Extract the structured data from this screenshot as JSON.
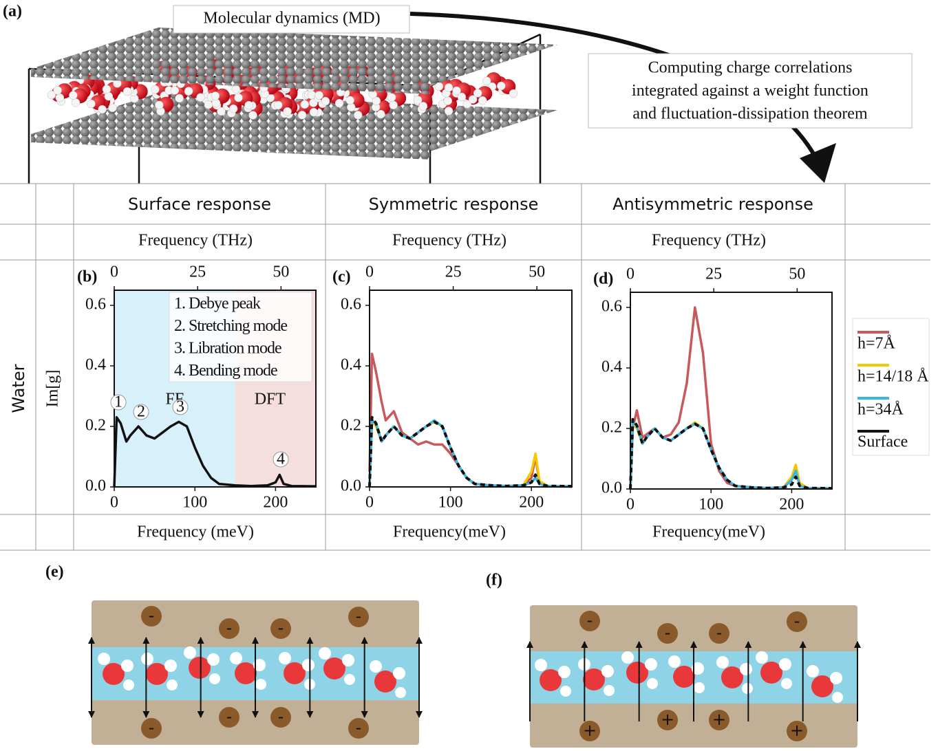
{
  "figure": {
    "panel_a": {
      "label": "(a)",
      "md_label": "Molecular dynamics (MD)",
      "note": [
        "Computing charge correlations",
        "integrated against a weight function",
        "and fluctuation-dissipation theorem"
      ]
    },
    "row_label": "Water",
    "panel_e": {
      "label": "(e)",
      "top_charges": [
        "-",
        "-",
        "-",
        "-"
      ],
      "bottom_charges": [
        "-",
        "-",
        "-",
        "-"
      ]
    },
    "panel_f": {
      "label": "(f)",
      "top_charges": [
        "-",
        "-",
        "-",
        "-"
      ],
      "bottom_charges": [
        "+",
        "+",
        "+",
        "+"
      ]
    }
  },
  "chart_data": [
    {
      "type": "line",
      "label": "(b)",
      "title": "Surface response",
      "x2label": "Frequency (THz)",
      "xlabel": "Frequency (meV)",
      "ylabel": "Im[g]",
      "xlim": [
        0,
        250
      ],
      "xticks": [
        0,
        100,
        200
      ],
      "x2lim": [
        0,
        60.45
      ],
      "x2ticks": [
        0,
        25,
        50
      ],
      "ylim": [
        0,
        0.65
      ],
      "yticks": [
        {
          "value": 0,
          "label": "0.0"
        },
        0.2,
        0.4,
        0.6
      ],
      "x": [
        0,
        3,
        8,
        15,
        20,
        30,
        40,
        50,
        60,
        70,
        80,
        90,
        100,
        110,
        120,
        130,
        150,
        170,
        190,
        200,
        205,
        210,
        220,
        250
      ],
      "series": [
        {
          "name": "Surface",
          "color": "#111111",
          "linestyle": "solid",
          "values": [
            0.0,
            0.23,
            0.21,
            0.15,
            0.17,
            0.2,
            0.17,
            0.16,
            0.18,
            0.2,
            0.215,
            0.2,
            0.13,
            0.07,
            0.03,
            0.01,
            0.005,
            0.003,
            0.005,
            0.015,
            0.04,
            0.01,
            0.003,
            0.002
          ]
        }
      ],
      "regions": [
        {
          "label": "FF",
          "range": [
            0,
            150
          ],
          "color": "#3cb4e5"
        },
        {
          "label": "DFT",
          "range": [
            150,
            250
          ],
          "color": "#c8585a"
        }
      ],
      "annotations": [
        "1. Debye peak",
        "2. Stretching mode",
        "3. Libration mode",
        "4. Bending mode"
      ],
      "peak_labels": [
        "1",
        "2",
        "3",
        "4"
      ]
    },
    {
      "type": "line",
      "label": "(c)",
      "title": "Symmetric response",
      "x2label": "Frequency (THz)",
      "xlabel": "Frequency(meV)",
      "xlim": [
        0,
        250
      ],
      "xticks": [
        0,
        100,
        200
      ],
      "x2lim": [
        0,
        60.45
      ],
      "x2ticks": [
        0,
        25,
        50
      ],
      "ylim": [
        0,
        0.65
      ],
      "yticks": [
        {
          "value": 0,
          "label": "0.0"
        },
        0.2,
        0.4,
        0.6
      ],
      "x": [
        0,
        3,
        8,
        15,
        20,
        30,
        40,
        50,
        60,
        70,
        80,
        90,
        100,
        110,
        120,
        130,
        150,
        170,
        190,
        200,
        205,
        210,
        220,
        250
      ],
      "series": [
        {
          "name": "h=7Å",
          "color": "#c8585a",
          "linestyle": "solid",
          "values": [
            0.05,
            0.44,
            0.38,
            0.28,
            0.22,
            0.25,
            0.18,
            0.16,
            0.14,
            0.15,
            0.14,
            0.14,
            0.11,
            0.07,
            0.03,
            0.01,
            0.003,
            0.002,
            0.005,
            0.03,
            0.1,
            0.01,
            0.002,
            0.001
          ]
        },
        {
          "name": "h=14/18 Å",
          "color": "#f5c800",
          "linestyle": "solid",
          "values": [
            0.0,
            0.22,
            0.2,
            0.15,
            0.17,
            0.2,
            0.17,
            0.16,
            0.18,
            0.2,
            0.215,
            0.2,
            0.13,
            0.07,
            0.03,
            0.01,
            0.005,
            0.003,
            0.006,
            0.05,
            0.11,
            0.02,
            0.003,
            0.002
          ]
        },
        {
          "name": "h=34Å",
          "color": "#3cb4e5",
          "linestyle": "solid",
          "values": [
            0.0,
            0.22,
            0.21,
            0.15,
            0.17,
            0.2,
            0.17,
            0.16,
            0.18,
            0.2,
            0.22,
            0.2,
            0.13,
            0.07,
            0.03,
            0.01,
            0.005,
            0.003,
            0.005,
            0.015,
            0.03,
            0.01,
            0.003,
            0.002
          ]
        },
        {
          "name": "Surface",
          "color": "#111111",
          "linestyle": "dashed",
          "values": [
            0.0,
            0.23,
            0.21,
            0.15,
            0.17,
            0.2,
            0.17,
            0.16,
            0.18,
            0.2,
            0.215,
            0.2,
            0.13,
            0.07,
            0.03,
            0.01,
            0.005,
            0.003,
            0.005,
            0.015,
            0.04,
            0.01,
            0.003,
            0.002
          ]
        }
      ]
    },
    {
      "type": "line",
      "label": "(d)",
      "title": "Antisymmetric response",
      "x2label": "Frequency (THz)",
      "xlabel": "Frequency(meV)",
      "xlim": [
        0,
        250
      ],
      "xticks": [
        0,
        100,
        200
      ],
      "x2lim": [
        0,
        60.45
      ],
      "x2ticks": [
        0,
        25,
        50
      ],
      "ylim": [
        0,
        0.65
      ],
      "yticks": [
        {
          "value": 0,
          "label": "0.0"
        },
        0.2,
        0.4,
        0.6
      ],
      "x": [
        0,
        3,
        8,
        15,
        20,
        30,
        40,
        50,
        60,
        70,
        80,
        90,
        100,
        110,
        120,
        130,
        150,
        170,
        190,
        200,
        205,
        210,
        220,
        250
      ],
      "series": [
        {
          "name": "h=7Å",
          "color": "#c8585a",
          "linestyle": "solid",
          "values": [
            0.0,
            0.2,
            0.26,
            0.17,
            0.18,
            0.2,
            0.17,
            0.18,
            0.22,
            0.35,
            0.6,
            0.45,
            0.15,
            0.06,
            0.02,
            0.01,
            0.005,
            0.003,
            0.005,
            0.03,
            0.07,
            0.01,
            0.003,
            0.002
          ]
        },
        {
          "name": "h=14/18 Å",
          "color": "#f5c800",
          "linestyle": "solid",
          "values": [
            0.0,
            0.22,
            0.2,
            0.15,
            0.17,
            0.2,
            0.17,
            0.16,
            0.18,
            0.2,
            0.22,
            0.2,
            0.13,
            0.07,
            0.03,
            0.01,
            0.005,
            0.003,
            0.006,
            0.04,
            0.08,
            0.02,
            0.003,
            0.002
          ]
        },
        {
          "name": "h=34Å",
          "color": "#3cb4e5",
          "linestyle": "solid",
          "values": [
            0.0,
            0.22,
            0.21,
            0.15,
            0.17,
            0.2,
            0.17,
            0.16,
            0.18,
            0.2,
            0.215,
            0.2,
            0.13,
            0.07,
            0.03,
            0.01,
            0.005,
            0.003,
            0.005,
            0.03,
            0.06,
            0.01,
            0.003,
            0.002
          ]
        },
        {
          "name": "Surface",
          "color": "#111111",
          "linestyle": "dashed",
          "values": [
            0.0,
            0.23,
            0.21,
            0.15,
            0.17,
            0.2,
            0.17,
            0.16,
            0.18,
            0.2,
            0.215,
            0.2,
            0.13,
            0.07,
            0.03,
            0.01,
            0.005,
            0.003,
            0.005,
            0.015,
            0.04,
            0.01,
            0.003,
            0.002
          ]
        }
      ]
    }
  ]
}
